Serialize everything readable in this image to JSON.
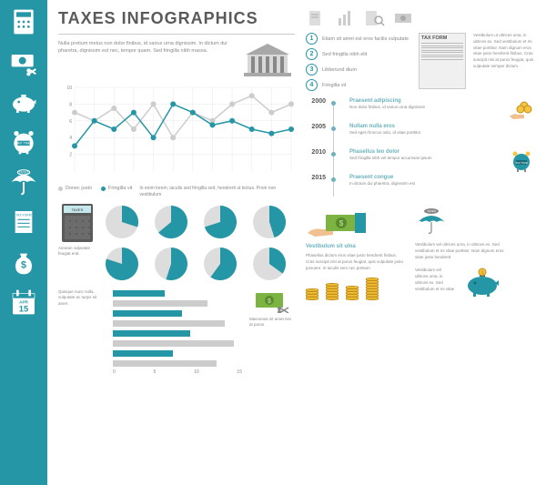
{
  "title": "TAXES INFOGRAPHICS",
  "colors": {
    "sidebar": "#2596a5",
    "teal": "#2596a5",
    "teal_light": "#6bb3bd",
    "gray": "#888888",
    "gray_light": "#cccccc",
    "gray_dark": "#5a5a5a",
    "gold": "#f5c542",
    "green": "#7cb342"
  },
  "intro": "Nulla pretium metus non dolor finibus, id varius urna dignissim. In dictum dui pharetra, dignissim est nec, tempor quam. Sed fringilla nibh massa.",
  "line_chart": {
    "type": "line",
    "y_axis": {
      "min": 0,
      "max": 10,
      "ticks": [
        2,
        4,
        6,
        8,
        10
      ]
    },
    "x_count": 12,
    "series": [
      {
        "name": "Donec justo",
        "color": "#cccccc",
        "values": [
          7,
          6,
          7.5,
          5,
          8,
          4,
          7,
          6,
          8,
          9,
          7,
          8
        ]
      },
      {
        "name": "Fringilla vit",
        "color": "#2596a5",
        "values": [
          3,
          6,
          5,
          7,
          4,
          8,
          7,
          5.5,
          6,
          5,
          4.5,
          5
        ]
      }
    ],
    "grid_color": "#e8e8e8",
    "marker": "circle",
    "marker_size": 3,
    "line_width": 1.5,
    "caption": "In enim lorem, iaculis sed fringilla sed, hendrerit ut lectus. Proin non vestibulum"
  },
  "pie_charts": {
    "type": "pie",
    "label": "Aenean vulputate feugiat erat",
    "colors": {
      "fill": "#2596a5",
      "empty": "#dddddd"
    },
    "pies": [
      30,
      64,
      70,
      45,
      80,
      55,
      60,
      35
    ]
  },
  "bar_chart": {
    "type": "bar",
    "left_text": "Quisque nunc nulla, vulputate ac turpis sit amet",
    "right_text": "Maecenas sit amet nisi at purus",
    "x_axis": {
      "min": 0,
      "max": 15,
      "ticks": [
        5,
        10,
        15
      ]
    },
    "bars": [
      {
        "value": 6,
        "color": "#2596a5"
      },
      {
        "value": 11,
        "color": "#cccccc"
      },
      {
        "value": 8,
        "color": "#2596a5"
      },
      {
        "value": 13,
        "color": "#cccccc"
      },
      {
        "value": 9,
        "color": "#2596a5"
      },
      {
        "value": 14,
        "color": "#cccccc"
      },
      {
        "value": 7,
        "color": "#2596a5"
      },
      {
        "value": 12,
        "color": "#cccccc"
      }
    ]
  },
  "numbered": {
    "items": [
      {
        "n": 1,
        "text": "Etiam sit amet est eros facilis vulputate"
      },
      {
        "n": 2,
        "text": "Sed fringilla nibh elit"
      },
      {
        "n": 3,
        "text": "Libberund dium"
      },
      {
        "n": 4,
        "text": "Fringilla vit"
      }
    ],
    "side_text": "Vestibulum ut ultrices uma, in ultrices ex. Sed vestibulum et mi vitae porttitor. Nam dignum eros vitae justo hendrerit finibus. Cras suscipit nisi at purus feugiat, quis vulputate semper dictum"
  },
  "tax_form": {
    "title": "TAX FORM"
  },
  "timeline": {
    "items": [
      {
        "year": "2000",
        "title": "Praesent adipiscing",
        "text": "Non dolor finibus, id varius urna dignissim",
        "icon": "coins-hand"
      },
      {
        "year": "2005",
        "title": "Nullam nulla eros",
        "text": "Sed eget rhoncus odio, id vitae porttitor"
      },
      {
        "year": "2010",
        "title": "Phasellus leo dolor",
        "text": "Sed fringilla nibh vel tempor accumsan ipsum",
        "icon": "tax-clock"
      },
      {
        "year": "2015",
        "title": "Praesent congue",
        "text": "In dictum dui pharetra, dignissim est"
      }
    ]
  },
  "bottom": {
    "block1_title": "Vestibulum sit ulna",
    "block1_text": "Phasellus dictum eros vitae justo hendrerit finibus. Cras suscipit nisi at purus feugiat, quis vulputate justo posuere. In iaculis sem nec pretium",
    "block2_text": "Vestibulum vel ultrices urna, in ultrices ex. Sed vestibulum et mi vitae porttitor. Nam dignum eros vitae justo hendrerit",
    "block3_text": "Vestibulum vel ultrices urna, in ultrices ex. Sed vestibulum et mi vitae",
    "coin_stacks": [
      4,
      6,
      5,
      8
    ]
  },
  "sidebar_icons": [
    "calculator",
    "money-cut",
    "piggy",
    "tax-clock",
    "umbrella",
    "tax-form",
    "money-bag",
    "calendar"
  ],
  "calendar_date": "APR 15",
  "tax_time_label": "TAX TIME",
  "taxes_label": "TAXES"
}
